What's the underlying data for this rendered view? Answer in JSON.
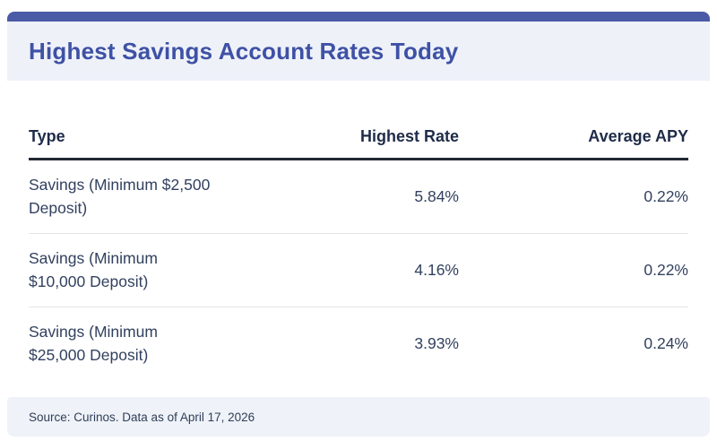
{
  "header": {
    "title": "Highest Savings Account Rates Today"
  },
  "table": {
    "columns": [
      "Type",
      "Highest Rate",
      "Average APY"
    ],
    "rows": [
      {
        "type": "Savings (Minimum $2,500 Deposit)",
        "highest_rate": "5.84%",
        "average_apy": "0.22%"
      },
      {
        "type": "Savings (Minimum $10,000 Deposit)",
        "highest_rate": "4.16%",
        "average_apy": "0.22%"
      },
      {
        "type": "Savings (Minimum $25,000 Deposit)",
        "highest_rate": "3.93%",
        "average_apy": "0.24%"
      }
    ]
  },
  "footer": {
    "source_text": "Source: Curinos. Data as of April 17, 2026"
  },
  "colors": {
    "accent_bar": "#4B5AA6",
    "title_text": "#3E51A5",
    "band_background": "#EEF1F8",
    "header_text": "#1F2C49",
    "body_text": "#32415F",
    "header_rule": "#222833",
    "row_divider": "#E3E6EA"
  },
  "chart_data": {
    "type": "table",
    "title": "Highest Savings Account Rates Today",
    "columns": [
      "Type",
      "Highest Rate",
      "Average APY"
    ],
    "rows": [
      [
        "Savings (Minimum $2,500 Deposit)",
        "5.84%",
        "0.22%"
      ],
      [
        "Savings (Minimum $10,000 Deposit)",
        "4.16%",
        "0.22%"
      ],
      [
        "Savings (Minimum $25,000 Deposit)",
        "3.93%",
        "0.24%"
      ]
    ],
    "source": "Source: Curinos. Data as of April 17, 2026"
  }
}
